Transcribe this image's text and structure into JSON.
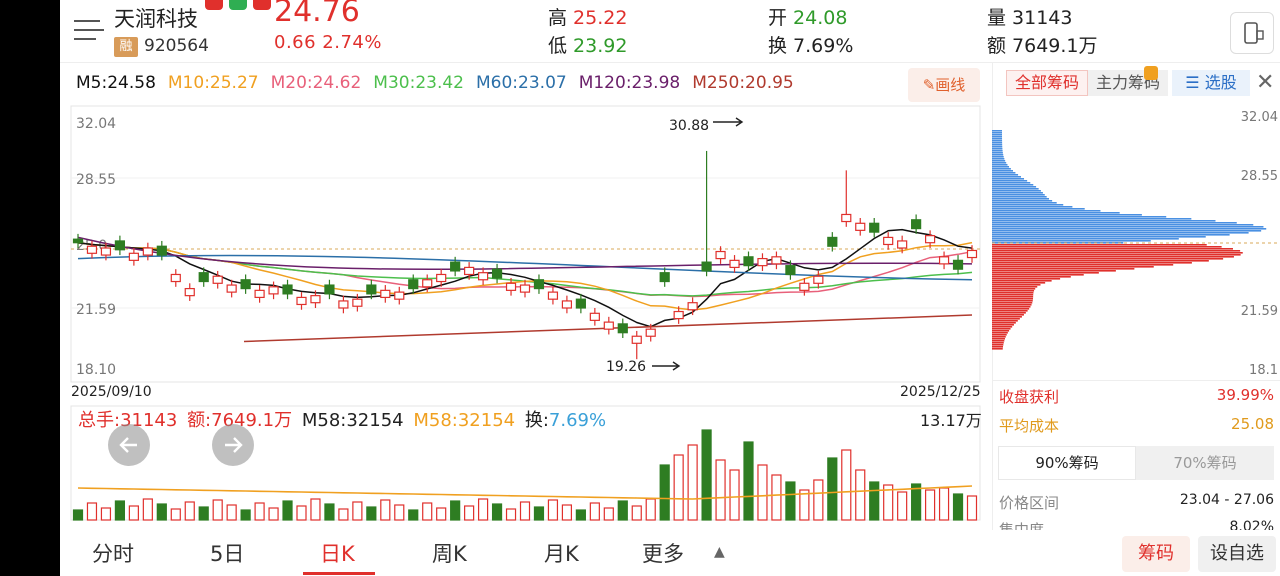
{
  "stock": {
    "name": "天润科技",
    "badge": "融",
    "code": "920564",
    "price": "24.76",
    "change": "0.66  2.74%"
  },
  "quote": {
    "high_label": "高",
    "high": "25.22",
    "low_label": "低",
    "low": "23.92",
    "open_label": "开",
    "open": "24.08",
    "turnover_label": "换",
    "turnover": "7.69%",
    "volume_label": "量",
    "volume": "31143",
    "amount_label": "额",
    "amount": "7649.1万"
  },
  "ma": {
    "m5": "M5:24.58",
    "m10": "M10:25.27",
    "m20": "M20:24.62",
    "m30": "M30:23.42",
    "m60": "M60:23.07",
    "m120": "M120:23.98",
    "m250": "M250:20.95",
    "draw_label": "✎画线",
    "colors": {
      "m5": "#111111",
      "m10": "#f0a020",
      "m20": "#e8607a",
      "m30": "#4cbf4c",
      "m60": "#2b6fa8",
      "m120": "#6a1f6a",
      "m250": "#b03a2e"
    }
  },
  "kline": {
    "y_ticks": [
      "32.04",
      "28.55",
      "25.0",
      "21.59",
      "18.10"
    ],
    "start_date": "2025/09/10",
    "end_date": "2025/12/25",
    "max_label": "30.88",
    "min_label": "19.26"
  },
  "volume_bar": {
    "total": "总手:31143",
    "amount": "额:7649.1万",
    "m58a": "M58:32154",
    "m58b": "M58:32154",
    "turnover_label": "换:",
    "turnover": "7.69%",
    "max": "13.17万"
  },
  "chips": {
    "tabs": [
      "全部筹码",
      "主力筹码",
      "选股"
    ],
    "y_ticks": [
      "32.04",
      "28.55",
      "21.59",
      "18.1"
    ],
    "profit_label": "收盘获利",
    "profit": "39.99%",
    "avg_cost_label": "平均成本",
    "avg_cost": "25.08",
    "tab90": "90%筹码",
    "tab70": "70%筹码",
    "range_label": "价格区间",
    "range": "23.04 - 27.06",
    "concentration_label": "集中度",
    "concentration": "8.02%"
  },
  "nav": {
    "items": [
      "分时",
      "5日",
      "日K",
      "周K",
      "月K",
      "更多"
    ],
    "active": "日K",
    "chips_btn": "筹码",
    "settings_btn": "设自选"
  }
}
